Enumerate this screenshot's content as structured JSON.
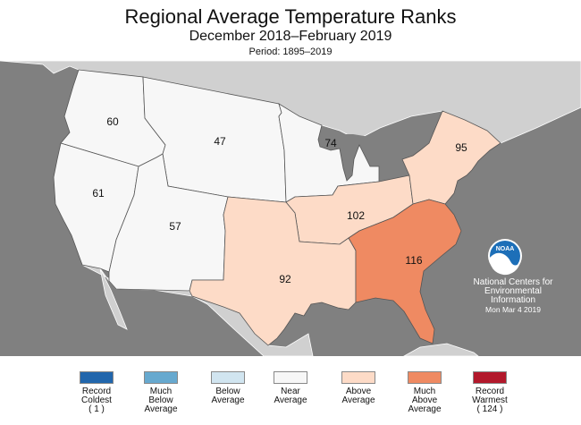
{
  "title": "Regional Average Temperature Ranks",
  "subtitle": "December 2018–February 2019",
  "period": "Period: 1895–2019",
  "regions": [
    {
      "id": "northwest",
      "rank": "60",
      "category": "near"
    },
    {
      "id": "west",
      "rank": "61",
      "category": "near"
    },
    {
      "id": "northern-rockies-plains",
      "rank": "47",
      "category": "near"
    },
    {
      "id": "southwest",
      "rank": "57",
      "category": "near"
    },
    {
      "id": "upper-midwest",
      "rank": "74",
      "category": "near"
    },
    {
      "id": "ohio-valley",
      "rank": "102",
      "category": "above"
    },
    {
      "id": "south",
      "rank": "92",
      "category": "above"
    },
    {
      "id": "northeast",
      "rank": "95",
      "category": "above"
    },
    {
      "id": "southeast",
      "rank": "116",
      "category": "much_above"
    }
  ],
  "legend": [
    {
      "key": "record_coldest",
      "label": [
        "Record",
        "Coldest",
        "( 1 )"
      ],
      "color": "#2166ac"
    },
    {
      "key": "much_below",
      "label": [
        "Much",
        "Below",
        "Average"
      ],
      "color": "#67a9cf"
    },
    {
      "key": "below",
      "label": [
        "Below",
        "Average"
      ],
      "color": "#d1e5f0"
    },
    {
      "key": "near",
      "label": [
        "Near",
        "Average"
      ],
      "color": "#f7f7f7"
    },
    {
      "key": "above",
      "label": [
        "Above",
        "Average"
      ],
      "color": "#fddbc7"
    },
    {
      "key": "much_above",
      "label": [
        "Much",
        "Above",
        "Average"
      ],
      "color": "#ef8a62"
    },
    {
      "key": "record_warmest",
      "label": [
        "Record",
        "Warmest",
        "( 124 )"
      ],
      "color": "#b2182b"
    }
  ],
  "background_colors": {
    "ocean": "#808080",
    "land": "#d0d0d0"
  },
  "logo": {
    "text": "NOAA",
    "icon": "noaa-logo-icon"
  },
  "credit": {
    "line1": "National Centers for",
    "line2": "Environmental",
    "line3": "Information",
    "date": "Mon Mar  4 2019"
  }
}
